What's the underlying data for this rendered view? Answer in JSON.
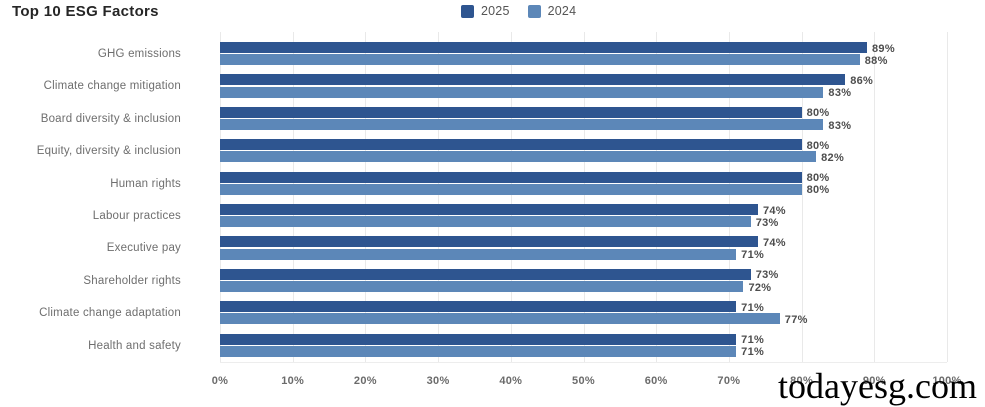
{
  "title": "Top 10 ESG Factors",
  "watermark": "todayesg.com",
  "colors": {
    "series_2025": "#2E5590",
    "series_2024": "#5C87B8",
    "gridline": "#e9e9e9",
    "title_text": "#262626",
    "category_text": "#6e6e6e",
    "value_text": "#4d4d4d",
    "tick_text": "#6b6b6b",
    "background": "#ffffff"
  },
  "chart_data": {
    "type": "bar",
    "orientation": "horizontal",
    "title": "Top 10 ESG Factors",
    "categories": [
      "GHG emissions",
      "Climate change mitigation",
      "Board diversity & inclusion",
      "Equity, diversity & inclusion",
      "Human rights",
      "Labour practices",
      "Executive pay",
      "Shareholder rights",
      "Climate change adaptation",
      "Health and safety"
    ],
    "series": [
      {
        "name": "2025",
        "color": "#2E5590",
        "values": [
          89,
          86,
          80,
          80,
          80,
          74,
          74,
          73,
          71,
          71
        ]
      },
      {
        "name": "2024",
        "color": "#5C87B8",
        "values": [
          88,
          83,
          83,
          82,
          80,
          73,
          71,
          72,
          77,
          71
        ]
      }
    ],
    "value_suffix": "%",
    "xlabel": "",
    "ylabel": "",
    "xlim": [
      0,
      100
    ],
    "x_ticks": [
      "0%",
      "10%",
      "20%",
      "30%",
      "40%",
      "50%",
      "60%",
      "70%",
      "80%",
      "90%",
      "100%"
    ],
    "grid": true,
    "legend_position": "top-center",
    "data_labels": true
  }
}
